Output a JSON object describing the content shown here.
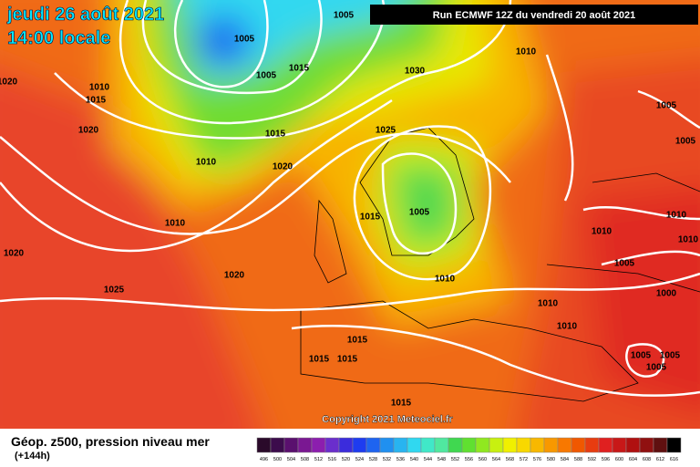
{
  "header": {
    "date": "jeudi 26 août 2021",
    "time": "14:00 locale",
    "run": "Run ECMWF 12Z du vendredi 20 août 2021"
  },
  "footer": {
    "copyright": "Copyright 2021 Meteociel.fr",
    "title": "Géop. z500, pression niveau mer",
    "lead": "(+144h)"
  },
  "scale": {
    "labels": [
      "496",
      "500",
      "504",
      "508",
      "512",
      "516",
      "520",
      "524",
      "528",
      "532",
      "536",
      "540",
      "544",
      "548",
      "552",
      "556",
      "560",
      "564",
      "568",
      "572",
      "576",
      "580",
      "584",
      "588",
      "592",
      "596",
      "600",
      "604",
      "608",
      "612",
      "616"
    ],
    "colors": [
      "#2a0a2a",
      "#3c0c4c",
      "#5a106e",
      "#7a1892",
      "#8c1eae",
      "#6a2ecc",
      "#3b2cdc",
      "#1e3cf0",
      "#1e64f0",
      "#2090f0",
      "#28b4f0",
      "#30d8f0",
      "#40e8c8",
      "#50e8a0",
      "#40d850",
      "#60e030",
      "#90e820",
      "#c8f010",
      "#f0f000",
      "#f8d800",
      "#f8b800",
      "#f89800",
      "#f87800",
      "#f05800",
      "#e83c10",
      "#e02020",
      "#c81818",
      "#b01010",
      "#901010",
      "#601010",
      "#000000"
    ]
  },
  "isobars": [
    "1005",
    "1005",
    "1005",
    "1015",
    "1030",
    "1010",
    "1010",
    "1015",
    "1020",
    "1015",
    "1025",
    "1020",
    "1010",
    "1005",
    "1005",
    "1010",
    "1015",
    "1005",
    "1010",
    "1010",
    "1010",
    "1005",
    "1020",
    "1020",
    "1025",
    "1010",
    "1010",
    "1010",
    "1000",
    "1015",
    "1015",
    "1015",
    "1005",
    "1005",
    "1005",
    "1015",
    "1020"
  ]
}
